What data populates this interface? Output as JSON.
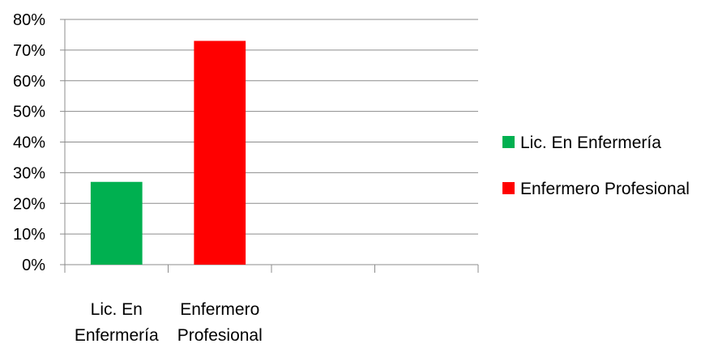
{
  "chart_data": {
    "type": "bar",
    "title": "",
    "xlabel": "",
    "ylabel": "",
    "categories": [
      {
        "lines": [
          "Lic. En",
          "Enfermería"
        ]
      },
      {
        "lines": [
          "Enfermero",
          "Profesional"
        ]
      },
      {
        "lines": []
      },
      {
        "lines": []
      }
    ],
    "series": [
      {
        "name": "Lic. En Enfermería",
        "color": "#00b050",
        "values": [
          0.27,
          null,
          null,
          null
        ]
      },
      {
        "name": "Enfermero Profesional",
        "color": "#ff0000",
        "values": [
          null,
          0.73,
          null,
          null
        ]
      }
    ],
    "ylim": [
      0,
      0.8
    ],
    "yticks": [
      0,
      0.1,
      0.2,
      0.3,
      0.4,
      0.5,
      0.6,
      0.7,
      0.8
    ],
    "ytick_labels": [
      "0%",
      "10%",
      "20%",
      "30%",
      "40%",
      "50%",
      "60%",
      "70%",
      "80%"
    ],
    "grid": true,
    "legend_position": "right"
  }
}
